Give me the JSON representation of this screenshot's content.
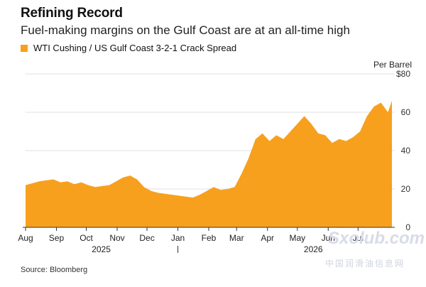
{
  "chart_data": {
    "type": "area",
    "title": "Refining Record",
    "subtitle": "Fuel-making margins on the Gulf Coast are at an all-time high",
    "series": [
      {
        "name": "WTI Cushing / US Gulf Coast 3-2-1 Crack Spread",
        "color": "#F7A01E",
        "values": [
          [
            "2025-08-01",
            22
          ],
          [
            "2025-08-08",
            23
          ],
          [
            "2025-08-15",
            24
          ],
          [
            "2025-08-22",
            24.5
          ],
          [
            "2025-08-29",
            25
          ],
          [
            "2025-09-05",
            23.5
          ],
          [
            "2025-09-12",
            24
          ],
          [
            "2025-09-19",
            22.5
          ],
          [
            "2025-09-26",
            23.5
          ],
          [
            "2025-10-03",
            22
          ],
          [
            "2025-10-10",
            21
          ],
          [
            "2025-10-17",
            21.5
          ],
          [
            "2025-10-24",
            22
          ],
          [
            "2025-10-31",
            24
          ],
          [
            "2025-11-07",
            26
          ],
          [
            "2025-11-14",
            27
          ],
          [
            "2025-11-21",
            25
          ],
          [
            "2025-11-28",
            21
          ],
          [
            "2025-12-05",
            19
          ],
          [
            "2025-12-12",
            18
          ],
          [
            "2025-12-19",
            17.5
          ],
          [
            "2025-12-26",
            17
          ],
          [
            "2026-01-02",
            16.5
          ],
          [
            "2026-01-09",
            16
          ],
          [
            "2026-01-16",
            15.5
          ],
          [
            "2026-01-23",
            17
          ],
          [
            "2026-01-30",
            19
          ],
          [
            "2026-02-06",
            21
          ],
          [
            "2026-02-13",
            19.5
          ],
          [
            "2026-02-20",
            20
          ],
          [
            "2026-02-27",
            21
          ],
          [
            "2026-03-06",
            28
          ],
          [
            "2026-03-13",
            36
          ],
          [
            "2026-03-20",
            46
          ],
          [
            "2026-03-27",
            49
          ],
          [
            "2026-04-03",
            45
          ],
          [
            "2026-04-10",
            48
          ],
          [
            "2026-04-17",
            46
          ],
          [
            "2026-04-24",
            50
          ],
          [
            "2026-05-01",
            54
          ],
          [
            "2026-05-08",
            58
          ],
          [
            "2026-05-15",
            54
          ],
          [
            "2026-05-22",
            49
          ],
          [
            "2026-05-29",
            48
          ],
          [
            "2026-06-05",
            44
          ],
          [
            "2026-06-12",
            46
          ],
          [
            "2026-06-19",
            45
          ],
          [
            "2026-06-26",
            47
          ],
          [
            "2026-07-03",
            50
          ],
          [
            "2026-07-10",
            58
          ],
          [
            "2026-07-17",
            63
          ],
          [
            "2026-07-24",
            65
          ],
          [
            "2026-07-31",
            60
          ],
          [
            "2026-08-04",
            66
          ]
        ]
      }
    ],
    "y_axis": {
      "label": "Per Barrel",
      "ticks": [
        "$80",
        "60",
        "40",
        "20",
        "0"
      ],
      "tick_values": [
        80,
        60,
        40,
        20,
        0
      ],
      "ylim": [
        0,
        80
      ]
    },
    "x_axis": {
      "months": [
        "Aug",
        "Sep",
        "Oct",
        "Nov",
        "Dec",
        "Jan",
        "Feb",
        "Mar",
        "Apr",
        "May",
        "Jun",
        "Jul"
      ],
      "month_dates": [
        "2025-08-01",
        "2025-09-01",
        "2025-10-01",
        "2025-11-01",
        "2025-12-01",
        "2026-01-01",
        "2026-02-01",
        "2026-03-01",
        "2026-04-01",
        "2026-05-01",
        "2026-06-01",
        "2026-07-01"
      ],
      "years": [
        "2025",
        "2026"
      ],
      "range": [
        "2025-08-01",
        "2026-08-04"
      ]
    },
    "grid": "horizontal",
    "legend": "top-left"
  },
  "source": "Source: Bloomberg",
  "watermark": {
    "text": "Sxolub.com",
    "subtext": "中国润滑油信息网"
  }
}
